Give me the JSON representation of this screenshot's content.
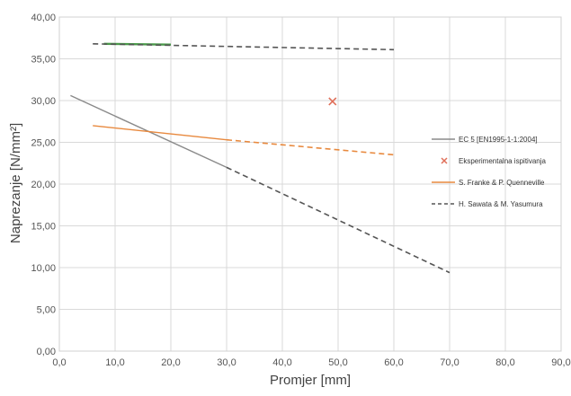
{
  "chart_data": {
    "type": "line",
    "title": "",
    "xlabel": "Promjer [mm]",
    "ylabel": "Naprezanje [N/mm²]",
    "xlim": [
      0,
      90
    ],
    "ylim": [
      0,
      40
    ],
    "xticks": [
      0,
      10,
      20,
      30,
      40,
      50,
      60,
      70,
      80,
      90
    ],
    "yticks": [
      0,
      5,
      10,
      15,
      20,
      25,
      30,
      35,
      40
    ],
    "xtick_labels": [
      "0,0",
      "10,0",
      "20,0",
      "30,0",
      "40,0",
      "50,0",
      "60,0",
      "70,0",
      "80,0",
      "90,0"
    ],
    "ytick_labels": [
      "0,00",
      "5,00",
      "10,00",
      "15,00",
      "20,00",
      "25,00",
      "30,00",
      "35,00",
      "40,00"
    ],
    "grid": true,
    "legend_position": "right",
    "series": [
      {
        "name": "EC 5 [EN1995-1-1:2004]",
        "color": "#8a8a8a",
        "segments": [
          {
            "style": "solid",
            "color": "#8a8a8a",
            "x": [
              2,
              30
            ],
            "y": [
              30.6,
              22.0
            ]
          },
          {
            "style": "dashed",
            "color": "#555555",
            "x": [
              30,
              70
            ],
            "y": [
              22.0,
              9.4
            ]
          }
        ]
      },
      {
        "name": "Eksperimentalna ispitivanja",
        "color": "#e0705a",
        "marker": "x",
        "points": [
          {
            "x": 49,
            "y": 29.9
          }
        ]
      },
      {
        "name": "S. Franke & P. Quenneville",
        "color": "#e8893e",
        "segments": [
          {
            "style": "solid",
            "color": "#e8893e",
            "x": [
              6,
              30
            ],
            "y": [
              27.0,
              25.3
            ]
          },
          {
            "style": "dashed",
            "color": "#e8893e",
            "x": [
              30,
              60
            ],
            "y": [
              25.3,
              23.5
            ]
          }
        ]
      },
      {
        "name": "H. Sawata & M. Yasumura",
        "color": "#555555",
        "segments": [
          {
            "style": "solid",
            "color": "#4a9a4a",
            "x": [
              8,
              20
            ],
            "y": [
              36.8,
              36.7
            ]
          },
          {
            "style": "dashed",
            "color": "#555555",
            "x": [
              6,
              60
            ],
            "y": [
              36.8,
              36.1
            ]
          }
        ]
      }
    ]
  }
}
